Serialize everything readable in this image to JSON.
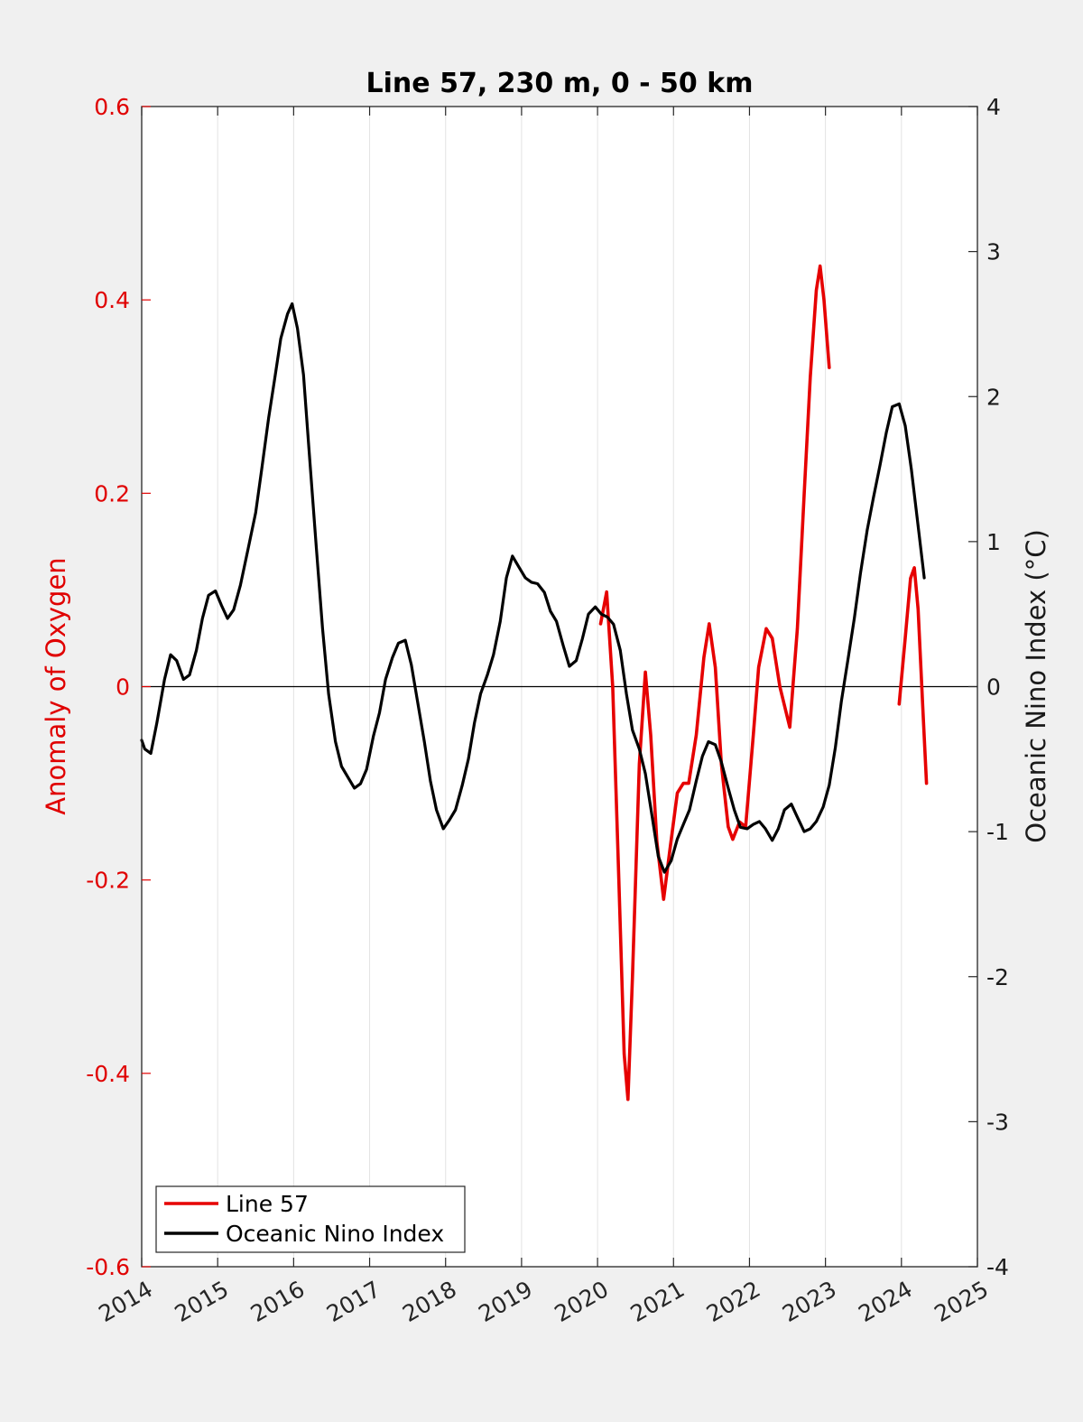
{
  "chart_data": {
    "type": "line",
    "title": "Line 57, 230 m, 0 - 50 km",
    "xlabel": "",
    "ylabel_left": "Anomaly of Oxygen",
    "ylabel_right": "Oceanic Nino Index (°C)",
    "xlim": [
      2014,
      2025
    ],
    "ylim_left": [
      -0.6,
      0.6
    ],
    "ylim_right": [
      -4,
      4
    ],
    "x_ticks": [
      "2014",
      "2015",
      "2016",
      "2017",
      "2018",
      "2019",
      "2020",
      "2021",
      "2022",
      "2023",
      "2024",
      "2025"
    ],
    "y_ticks_left": [
      "0.6",
      "0.4",
      "0.2",
      "0",
      "-0.2",
      "-0.4",
      "-0.6"
    ],
    "y_ticks_right": [
      "4",
      "3",
      "2",
      "1",
      "0",
      "-1",
      "-2",
      "-3",
      "-4"
    ],
    "grid": "vertical lines at year ticks",
    "zero_line": true,
    "legend_position": "bottom-left",
    "colors": {
      "line57": "#e60000",
      "oni": "#000000",
      "left_axis": "#e00000",
      "right_axis": "#1a1a1a",
      "plot_bg": "#ffffff",
      "page_bg": "#f0f0f0",
      "grid": "#e3e3e3"
    },
    "series": [
      {
        "name": "Line 57",
        "axis": "left",
        "segments": [
          [
            [
              2020.04,
              0.065
            ],
            [
              2020.12,
              0.098
            ],
            [
              2020.2,
              0.0
            ],
            [
              2020.28,
              -0.2
            ],
            [
              2020.35,
              -0.38
            ],
            [
              2020.4,
              -0.427
            ],
            [
              2020.46,
              -0.3
            ],
            [
              2020.55,
              -0.08
            ],
            [
              2020.63,
              0.015
            ],
            [
              2020.7,
              -0.05
            ],
            [
              2020.78,
              -0.16
            ],
            [
              2020.87,
              -0.22
            ],
            [
              2020.95,
              -0.17
            ],
            [
              2021.05,
              -0.11
            ],
            [
              2021.13,
              -0.1
            ],
            [
              2021.2,
              -0.1
            ],
            [
              2021.3,
              -0.05
            ],
            [
              2021.4,
              0.03
            ],
            [
              2021.47,
              0.065
            ],
            [
              2021.55,
              0.02
            ],
            [
              2021.63,
              -0.08
            ],
            [
              2021.72,
              -0.145
            ],
            [
              2021.78,
              -0.158
            ],
            [
              2021.87,
              -0.14
            ],
            [
              2021.95,
              -0.145
            ],
            [
              2022.05,
              -0.05
            ],
            [
              2022.12,
              0.02
            ],
            [
              2022.22,
              0.06
            ],
            [
              2022.3,
              0.05
            ],
            [
              2022.4,
              0.0
            ],
            [
              2022.53,
              -0.042
            ],
            [
              2022.63,
              0.06
            ],
            [
              2022.72,
              0.2
            ],
            [
              2022.8,
              0.32
            ],
            [
              2022.88,
              0.41
            ],
            [
              2022.93,
              0.435
            ],
            [
              2022.98,
              0.4
            ],
            [
              2023.05,
              0.33
            ]
          ],
          [
            [
              2023.97,
              -0.018
            ],
            [
              2024.05,
              0.05
            ],
            [
              2024.12,
              0.112
            ],
            [
              2024.17,
              0.123
            ],
            [
              2024.22,
              0.08
            ],
            [
              2024.28,
              -0.02
            ],
            [
              2024.33,
              -0.1
            ]
          ]
        ]
      },
      {
        "name": "Oceanic Nino Index",
        "axis": "right",
        "segments": [
          [
            [
              2014.0,
              -0.37
            ],
            [
              2014.04,
              -0.43
            ],
            [
              2014.12,
              -0.46
            ],
            [
              2014.2,
              -0.25
            ],
            [
              2014.3,
              0.05
            ],
            [
              2014.38,
              0.22
            ],
            [
              2014.46,
              0.18
            ],
            [
              2014.55,
              0.05
            ],
            [
              2014.63,
              0.08
            ],
            [
              2014.72,
              0.25
            ],
            [
              2014.8,
              0.47
            ],
            [
              2014.88,
              0.63
            ],
            [
              2014.97,
              0.66
            ],
            [
              2015.05,
              0.56
            ],
            [
              2015.13,
              0.47
            ],
            [
              2015.21,
              0.53
            ],
            [
              2015.3,
              0.7
            ],
            [
              2015.4,
              0.95
            ],
            [
              2015.5,
              1.2
            ],
            [
              2015.58,
              1.5
            ],
            [
              2015.67,
              1.85
            ],
            [
              2015.75,
              2.12
            ],
            [
              2015.83,
              2.4
            ],
            [
              2015.92,
              2.57
            ],
            [
              2015.98,
              2.64
            ],
            [
              2016.05,
              2.47
            ],
            [
              2016.13,
              2.15
            ],
            [
              2016.2,
              1.65
            ],
            [
              2016.3,
              0.95
            ],
            [
              2016.38,
              0.4
            ],
            [
              2016.46,
              -0.05
            ],
            [
              2016.55,
              -0.38
            ],
            [
              2016.63,
              -0.55
            ],
            [
              2016.72,
              -0.63
            ],
            [
              2016.8,
              -0.7
            ],
            [
              2016.88,
              -0.67
            ],
            [
              2016.96,
              -0.57
            ],
            [
              2017.05,
              -0.34
            ],
            [
              2017.13,
              -0.18
            ],
            [
              2017.21,
              0.05
            ],
            [
              2017.3,
              0.2
            ],
            [
              2017.38,
              0.3
            ],
            [
              2017.47,
              0.32
            ],
            [
              2017.55,
              0.15
            ],
            [
              2017.63,
              -0.1
            ],
            [
              2017.72,
              -0.38
            ],
            [
              2017.8,
              -0.65
            ],
            [
              2017.88,
              -0.85
            ],
            [
              2017.97,
              -0.98
            ],
            [
              2018.05,
              -0.92
            ],
            [
              2018.13,
              -0.85
            ],
            [
              2018.22,
              -0.68
            ],
            [
              2018.3,
              -0.5
            ],
            [
              2018.38,
              -0.25
            ],
            [
              2018.46,
              -0.05
            ],
            [
              2018.55,
              0.08
            ],
            [
              2018.63,
              0.22
            ],
            [
              2018.72,
              0.45
            ],
            [
              2018.8,
              0.75
            ],
            [
              2018.88,
              0.9
            ],
            [
              2018.97,
              0.82
            ],
            [
              2019.05,
              0.75
            ],
            [
              2019.13,
              0.72
            ],
            [
              2019.21,
              0.71
            ],
            [
              2019.3,
              0.65
            ],
            [
              2019.38,
              0.52
            ],
            [
              2019.46,
              0.45
            ],
            [
              2019.55,
              0.28
            ],
            [
              2019.63,
              0.14
            ],
            [
              2019.72,
              0.18
            ],
            [
              2019.8,
              0.33
            ],
            [
              2019.88,
              0.5
            ],
            [
              2019.97,
              0.55
            ],
            [
              2020.05,
              0.5
            ],
            [
              2020.13,
              0.48
            ],
            [
              2020.21,
              0.43
            ],
            [
              2020.3,
              0.25
            ],
            [
              2020.38,
              -0.05
            ],
            [
              2020.46,
              -0.3
            ],
            [
              2020.55,
              -0.43
            ],
            [
              2020.63,
              -0.6
            ],
            [
              2020.72,
              -0.9
            ],
            [
              2020.8,
              -1.17
            ],
            [
              2020.88,
              -1.28
            ],
            [
              2020.97,
              -1.2
            ],
            [
              2021.05,
              -1.05
            ],
            [
              2021.13,
              -0.95
            ],
            [
              2021.21,
              -0.85
            ],
            [
              2021.3,
              -0.65
            ],
            [
              2021.38,
              -0.48
            ],
            [
              2021.46,
              -0.38
            ],
            [
              2021.55,
              -0.4
            ],
            [
              2021.63,
              -0.52
            ],
            [
              2021.72,
              -0.7
            ],
            [
              2021.8,
              -0.85
            ],
            [
              2021.88,
              -0.97
            ],
            [
              2021.97,
              -0.98
            ],
            [
              2022.05,
              -0.95
            ],
            [
              2022.13,
              -0.93
            ],
            [
              2022.21,
              -0.98
            ],
            [
              2022.3,
              -1.06
            ],
            [
              2022.38,
              -0.98
            ],
            [
              2022.46,
              -0.85
            ],
            [
              2022.55,
              -0.81
            ],
            [
              2022.63,
              -0.9
            ],
            [
              2022.72,
              -1.0
            ],
            [
              2022.8,
              -0.98
            ],
            [
              2022.88,
              -0.93
            ],
            [
              2022.97,
              -0.83
            ],
            [
              2023.05,
              -0.68
            ],
            [
              2023.13,
              -0.42
            ],
            [
              2023.21,
              -0.1
            ],
            [
              2023.3,
              0.2
            ],
            [
              2023.38,
              0.47
            ],
            [
              2023.46,
              0.78
            ],
            [
              2023.55,
              1.08
            ],
            [
              2023.63,
              1.3
            ],
            [
              2023.72,
              1.53
            ],
            [
              2023.8,
              1.75
            ],
            [
              2023.88,
              1.93
            ],
            [
              2023.97,
              1.95
            ],
            [
              2024.05,
              1.8
            ],
            [
              2024.13,
              1.5
            ],
            [
              2024.21,
              1.15
            ],
            [
              2024.3,
              0.75
            ]
          ]
        ]
      }
    ]
  }
}
